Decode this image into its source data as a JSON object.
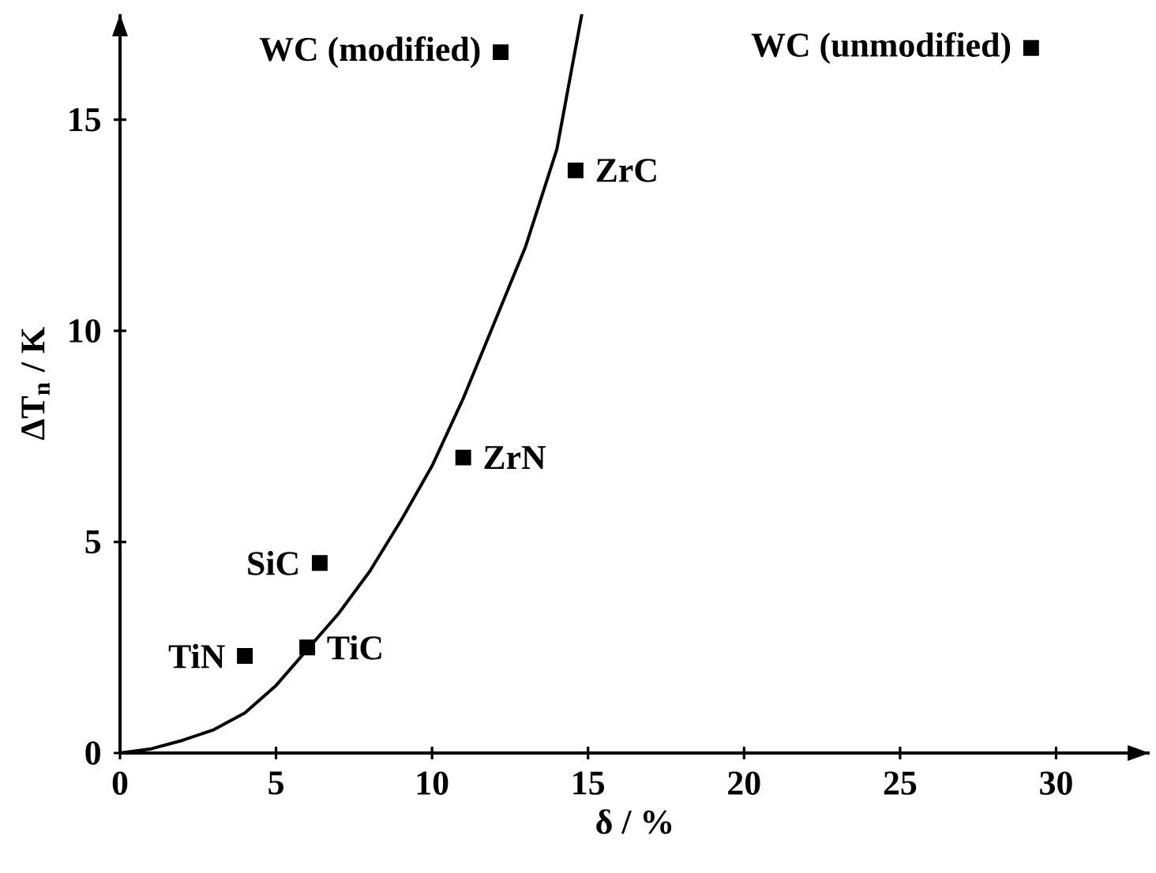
{
  "chart_data": {
    "type": "scatter",
    "xlabel": "δ / %",
    "ylabel": "ΔT$_{n}$ / K",
    "xlim": [
      0,
      33
    ],
    "ylim": [
      0,
      17.5
    ],
    "xticks": [
      0,
      5,
      10,
      15,
      20,
      25,
      30
    ],
    "yticks": [
      0,
      5,
      10,
      15
    ],
    "marker": "square",
    "legend": false,
    "series": [
      {
        "name": "WC (modified)",
        "color": "#000000",
        "x": [
          12.2
        ],
        "values": [
          16.6
        ]
      },
      {
        "name": "ZrC",
        "color": "#000000",
        "x": [
          14.6
        ],
        "values": [
          13.8
        ]
      },
      {
        "name": "ZrN",
        "color": "#000000",
        "x": [
          11.0
        ],
        "values": [
          7.0
        ]
      },
      {
        "name": "SiC",
        "color": "#000000",
        "x": [
          6.4
        ],
        "values": [
          4.5
        ]
      },
      {
        "name": "TiC",
        "color": "#000000",
        "x": [
          6.0
        ],
        "values": [
          2.5
        ]
      },
      {
        "name": "TiN",
        "color": "#000000",
        "x": [
          4.0
        ],
        "values": [
          2.3
        ]
      },
      {
        "name": "WC (unmodified)",
        "color": "#000000",
        "x": [
          29.2
        ],
        "values": [
          16.7
        ]
      },
      {
        "type": "line",
        "marker": "none",
        "color": "#000000",
        "x": [
          0,
          1,
          2,
          3,
          4,
          5,
          6,
          7,
          8,
          9,
          10,
          11,
          12,
          13,
          14,
          14.8
        ],
        "values": [
          0,
          0.1,
          0.3,
          0.55,
          0.95,
          1.6,
          2.45,
          3.3,
          4.3,
          5.5,
          6.8,
          8.4,
          10.2,
          12.0,
          14.3,
          17.5
        ]
      }
    ]
  }
}
